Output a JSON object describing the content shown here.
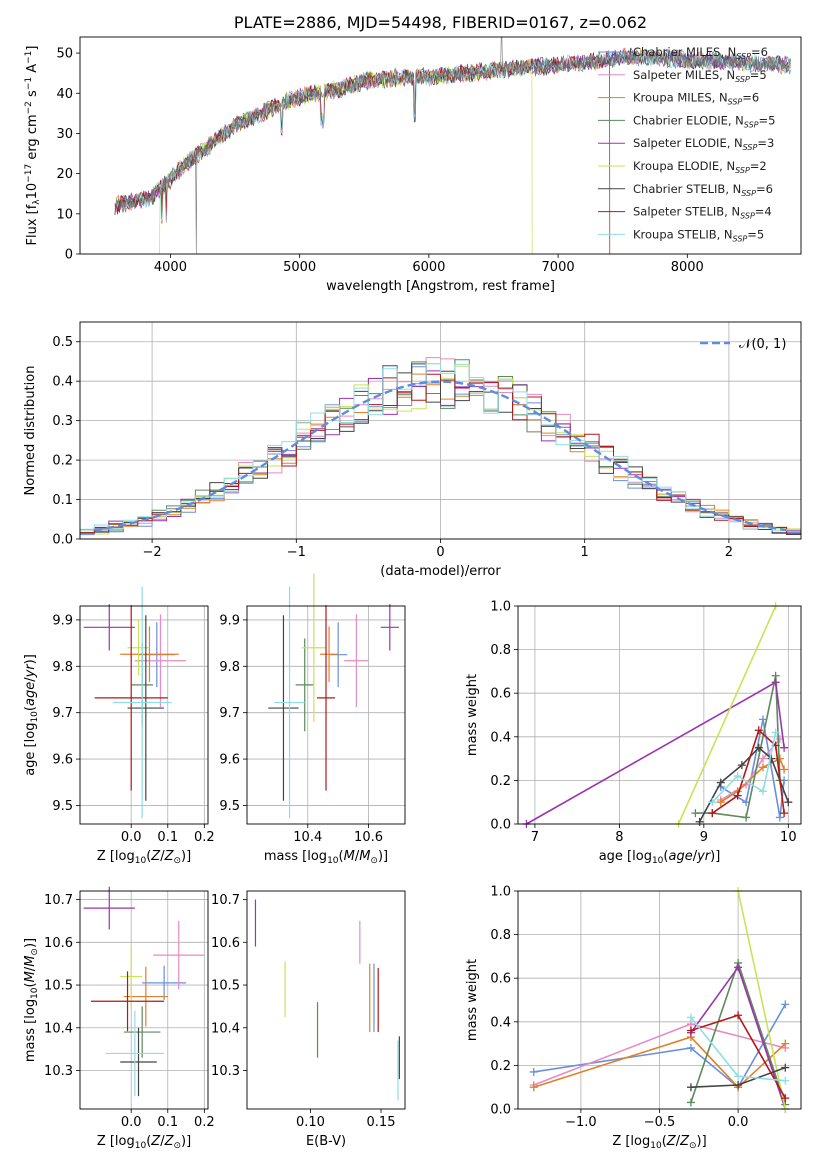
{
  "colors": {
    "Chabrier MILES": "#6a8fde",
    "Salpeter MILES": "#e88ac3",
    "Kroupa MILES": "#e0802a",
    "Chabrier ELODIE": "#5b8a5c",
    "Salpeter ELODIE": "#9a35ae",
    "Kroupa ELODIE": "#c9e356",
    "Chabrier STELIB": "#444444",
    "Salpeter STELIB": "#b31818",
    "Kroupa STELIB": "#8fdde6"
  },
  "chart_data": [
    {
      "id": "spectrum",
      "type": "line",
      "title": "PLATE=2886, MJD=54498, FIBERID=0167, z=0.062",
      "xlabel": "wavelength [Angstrom, rest frame]",
      "ylabel": "Flux [fλ10⁻¹⁷ erg cm⁻² s⁻¹ A⁻¹]",
      "xlim": [
        3300,
        8880
      ],
      "ylim": [
        0,
        54
      ],
      "xticks": [
        4000,
        5000,
        6000,
        7000,
        8000
      ],
      "yticks": [
        0,
        10,
        20,
        30,
        40,
        50
      ],
      "grid": false,
      "legend_position": "top-right",
      "continuum": {
        "x": [
          3570,
          3700,
          3850,
          3950,
          4100,
          4300,
          4500,
          4700,
          4900,
          5100,
          5300,
          5500,
          5800,
          6000,
          6300,
          6600,
          7000,
          7300,
          7500,
          7700,
          7900,
          8100,
          8300,
          8500,
          8800
        ],
        "y": [
          12,
          13,
          14,
          17,
          22,
          27,
          32,
          35,
          38,
          40,
          41,
          43,
          44,
          44,
          45,
          46,
          47,
          48,
          49,
          49,
          48.5,
          48,
          48,
          47.5,
          47
        ]
      },
      "legend": [
        "Chabrier MILES, N_SSP=6",
        "Salpeter MILES, N_SSP=5",
        "Kroupa MILES, N_SSP=6",
        "Chabrier ELODIE, N_SSP=5",
        "Salpeter ELODIE, N_SSP=3",
        "Kroupa ELODIE, N_SSP=2",
        "Chabrier STELIB, N_SSP=6",
        "Salpeter STELIB, N_SSP=4",
        "Kroupa STELIB, N_SSP=5"
      ]
    },
    {
      "id": "residuals",
      "type": "line",
      "xlabel": "(data-model)/error",
      "ylabel": "Normed distribution",
      "xlim": [
        -2.5,
        2.5
      ],
      "ylim": [
        0,
        0.55
      ],
      "xticks": [
        -2,
        -1,
        0,
        1,
        2
      ],
      "yticks": [
        0.0,
        0.1,
        0.2,
        0.3,
        0.4,
        0.5
      ],
      "grid": true,
      "legend_position": "top-right",
      "normal_label": "𝒩(0, 1)"
    },
    {
      "id": "age_vs_Z",
      "type": "scatter",
      "xlabel": "Z [log10(Z/Z☉)]",
      "ylabel": "age [log10(age/yr)]",
      "xlim": [
        -0.14,
        0.21
      ],
      "ylim": [
        9.46,
        9.93
      ],
      "xticks": [
        0.0,
        0.1,
        0.2
      ],
      "yticks": [
        9.5,
        9.6,
        9.7,
        9.8,
        9.9
      ],
      "grid": true,
      "points": [
        {
          "series": "Chabrier MILES",
          "x": 0.07,
          "y": 9.825,
          "xerr": 0.05,
          "yerr": 0.07
        },
        {
          "series": "Salpeter MILES",
          "x": 0.08,
          "y": 9.812,
          "xerr": 0.07,
          "yerr": 0.1
        },
        {
          "series": "Kroupa MILES",
          "x": 0.05,
          "y": 9.826,
          "xerr": 0.08,
          "yerr": 0.06
        },
        {
          "series": "Chabrier ELODIE",
          "x": 0.03,
          "y": 9.76,
          "xerr": 0.03,
          "yerr": 0.09
        },
        {
          "series": "Salpeter ELODIE",
          "x": -0.06,
          "y": 9.884,
          "xerr": 0.07,
          "yerr": 0.05
        },
        {
          "series": "Kroupa ELODIE",
          "x": 0.02,
          "y": 9.84,
          "xerr": 0.03,
          "yerr": 0.06
        },
        {
          "series": "Chabrier STELIB",
          "x": 0.04,
          "y": 9.71,
          "xerr": 0.05,
          "yerr": 0.2
        },
        {
          "series": "Salpeter STELIB",
          "x": 0.0,
          "y": 9.732,
          "xerr": 0.1,
          "yerr": 0.2
        },
        {
          "series": "Kroupa STELIB",
          "x": 0.03,
          "y": 9.722,
          "xerr": 0.08,
          "yerr": 0.25
        }
      ]
    },
    {
      "id": "age_vs_mass",
      "type": "scatter",
      "xlabel": "mass [log10(M/M☉)]",
      "ylabel": "",
      "xlim": [
        10.2,
        10.72
      ],
      "ylim": [
        9.46,
        9.93
      ],
      "xticks": [
        10.4,
        10.6
      ],
      "yticks": [
        9.5,
        9.6,
        9.7,
        9.8,
        9.9
      ],
      "grid": true,
      "points": [
        {
          "series": "Chabrier MILES",
          "x": 10.5,
          "y": 9.825,
          "xerr": 0.03,
          "yerr": 0.07
        },
        {
          "series": "Salpeter MILES",
          "x": 10.56,
          "y": 9.812,
          "xerr": 0.04,
          "yerr": 0.1
        },
        {
          "series": "Kroupa MILES",
          "x": 10.47,
          "y": 9.826,
          "xerr": 0.03,
          "yerr": 0.06
        },
        {
          "series": "Chabrier ELODIE",
          "x": 10.39,
          "y": 9.76,
          "xerr": 0.03,
          "yerr": 0.1
        },
        {
          "series": "Salpeter ELODIE",
          "x": 10.67,
          "y": 9.884,
          "xerr": 0.03,
          "yerr": 0.05
        },
        {
          "series": "Kroupa ELODIE",
          "x": 10.42,
          "y": 9.84,
          "xerr": 0.04,
          "yerr": 0.16
        },
        {
          "series": "Chabrier STELIB",
          "x": 10.32,
          "y": 9.71,
          "xerr": 0.05,
          "yerr": 0.2
        },
        {
          "series": "Salpeter STELIB",
          "x": 10.46,
          "y": 9.732,
          "xerr": 0.03,
          "yerr": 0.2
        },
        {
          "series": "Kroupa STELIB",
          "x": 10.34,
          "y": 9.722,
          "xerr": 0.05,
          "yerr": 0.25
        }
      ]
    },
    {
      "id": "weight_vs_age",
      "type": "line",
      "xlabel": "age [log10(age/yr)]",
      "ylabel": "mass weight",
      "xlim": [
        6.8,
        10.15
      ],
      "ylim": [
        0,
        1
      ],
      "xticks": [
        7,
        8,
        9,
        10
      ],
      "yticks": [
        0.0,
        0.2,
        0.4,
        0.6,
        0.8,
        1.0
      ],
      "grid": true,
      "series": [
        {
          "name": "Chabrier MILES",
          "x": [
            9.2,
            9.5,
            9.7,
            9.9,
            9.95
          ],
          "y": [
            0.17,
            0.1,
            0.48,
            0.03,
            0.2
          ]
        },
        {
          "name": "Salpeter MILES",
          "x": [
            9.2,
            9.5,
            9.7,
            9.9
          ],
          "y": [
            0.11,
            0.18,
            0.3,
            0.39
          ]
        },
        {
          "name": "Kroupa MILES",
          "x": [
            9.2,
            9.4,
            9.7,
            9.9,
            9.95
          ],
          "y": [
            0.1,
            0.15,
            0.26,
            0.3,
            0.25
          ]
        },
        {
          "name": "Chabrier ELODIE",
          "x": [
            8.9,
            9.1,
            9.5,
            9.85,
            9.9
          ],
          "y": [
            0.05,
            0.05,
            0.03,
            0.68,
            0.2
          ]
        },
        {
          "name": "Salpeter ELODIE",
          "x": [
            6.9,
            9.85,
            9.95
          ],
          "y": [
            0.0,
            0.65,
            0.35
          ]
        },
        {
          "name": "Kroupa ELODIE",
          "x": [
            8.7,
            9.85
          ],
          "y": [
            0.0,
            1.0
          ]
        },
        {
          "name": "Chabrier STELIB",
          "x": [
            8.95,
            9.2,
            9.45,
            9.65,
            9.8,
            10.0
          ],
          "y": [
            0.01,
            0.19,
            0.27,
            0.35,
            0.3,
            0.1
          ]
        },
        {
          "name": "Salpeter STELIB",
          "x": [
            9.1,
            9.4,
            9.65,
            9.85,
            9.95
          ],
          "y": [
            0.05,
            0.13,
            0.43,
            0.36,
            0.05
          ]
        },
        {
          "name": "Kroupa STELIB",
          "x": [
            9.1,
            9.4,
            9.7,
            9.85
          ],
          "y": [
            0.1,
            0.22,
            0.15,
            0.42
          ]
        }
      ]
    },
    {
      "id": "mass_vs_Z",
      "type": "scatter",
      "xlabel": "Z [log10(Z/Z☉)]",
      "ylabel": "mass [log10(M/M☉)]",
      "xlim": [
        -0.14,
        0.21
      ],
      "ylim": [
        10.21,
        10.72
      ],
      "xticks": [
        0.0,
        0.1,
        0.2
      ],
      "yticks": [
        10.3,
        10.4,
        10.5,
        10.6,
        10.7
      ],
      "grid": true,
      "points": [
        {
          "series": "Chabrier MILES",
          "x": 0.09,
          "y": 10.505,
          "xerr": 0.06,
          "yerr": 0.04
        },
        {
          "series": "Salpeter MILES",
          "x": 0.13,
          "y": 10.57,
          "xerr": 0.07,
          "yerr": 0.08
        },
        {
          "series": "Kroupa MILES",
          "x": 0.04,
          "y": 10.473,
          "xerr": 0.06,
          "yerr": 0.07
        },
        {
          "series": "Chabrier ELODIE",
          "x": 0.03,
          "y": 10.39,
          "xerr": 0.05,
          "yerr": 0.06
        },
        {
          "series": "Salpeter ELODIE",
          "x": -0.06,
          "y": 10.68,
          "xerr": 0.07,
          "yerr": 0.05
        },
        {
          "series": "Kroupa ELODIE",
          "x": 0.0,
          "y": 10.52,
          "xerr": 0.03,
          "yerr": 0.07
        },
        {
          "series": "Chabrier STELIB",
          "x": 0.02,
          "y": 10.32,
          "xerr": 0.05,
          "yerr": 0.08
        },
        {
          "series": "Salpeter STELIB",
          "x": -0.01,
          "y": 10.462,
          "xerr": 0.1,
          "yerr": 0.07
        },
        {
          "series": "Kroupa STELIB",
          "x": 0.01,
          "y": 10.34,
          "xerr": 0.08,
          "yerr": 0.1
        }
      ]
    },
    {
      "id": "mass_vs_EBV",
      "type": "scatter",
      "xlabel": "E(B-V)",
      "ylabel": "",
      "xlim": [
        0.055,
        0.167
      ],
      "ylim": [
        10.21,
        10.72
      ],
      "xticks": [
        0.1,
        0.15
      ],
      "yticks": [
        10.3,
        10.4,
        10.5,
        10.6,
        10.7
      ],
      "grid": false,
      "points": [
        {
          "series": "Chabrier MILES",
          "x": 0.145,
          "y": 10.47,
          "xerr": 0,
          "yerr": 0.08
        },
        {
          "series": "Salpeter MILES",
          "x": 0.135,
          "y": 10.6,
          "xerr": 0,
          "yerr": 0.05
        },
        {
          "series": "Kroupa MILES",
          "x": 0.142,
          "y": 10.47,
          "xerr": 0,
          "yerr": 0.08
        },
        {
          "series": "Chabrier ELODIE",
          "x": 0.105,
          "y": 10.395,
          "xerr": 0,
          "yerr": 0.065
        },
        {
          "series": "Salpeter ELODIE",
          "x": 0.061,
          "y": 10.645,
          "xerr": 0,
          "yerr": 0.055
        },
        {
          "series": "Kroupa ELODIE",
          "x": 0.082,
          "y": 10.49,
          "xerr": 0,
          "yerr": 0.065
        },
        {
          "series": "Chabrier STELIB",
          "x": 0.163,
          "y": 10.33,
          "xerr": 0,
          "yerr": 0.05
        },
        {
          "series": "Salpeter STELIB",
          "x": 0.148,
          "y": 10.465,
          "xerr": 0,
          "yerr": 0.075
        },
        {
          "series": "Kroupa STELIB",
          "x": 0.162,
          "y": 10.3,
          "xerr": 0,
          "yerr": 0.07
        }
      ]
    },
    {
      "id": "weight_vs_Z",
      "type": "line",
      "xlabel": "Z [log10(Z/Z☉)]",
      "ylabel": "mass weight",
      "xlim": [
        -1.4,
        0.4
      ],
      "ylim": [
        0,
        1
      ],
      "xticks": [
        -1.0,
        -0.5,
        0.0
      ],
      "yticks": [
        0.0,
        0.2,
        0.4,
        0.6,
        0.8,
        1.0
      ],
      "grid": true,
      "series": [
        {
          "name": "Chabrier MILES",
          "x": [
            -1.3,
            -0.3,
            0.0,
            0.3
          ],
          "y": [
            0.17,
            0.28,
            0.1,
            0.48
          ]
        },
        {
          "name": "Salpeter MILES",
          "x": [
            -1.3,
            -0.3,
            0.3
          ],
          "y": [
            0.11,
            0.39,
            0.28
          ]
        },
        {
          "name": "Kroupa MILES",
          "x": [
            -1.3,
            -0.3,
            0.0,
            0.3
          ],
          "y": [
            0.1,
            0.33,
            0.1,
            0.3
          ]
        },
        {
          "name": "Chabrier ELODIE",
          "x": [
            -0.3,
            0.0,
            0.3
          ],
          "y": [
            0.03,
            0.67,
            0.02
          ]
        },
        {
          "name": "Salpeter ELODIE",
          "x": [
            -0.3,
            0.0,
            0.3
          ],
          "y": [
            0.35,
            0.65,
            0.0
          ]
        },
        {
          "name": "Kroupa ELODIE",
          "x": [
            0.0,
            0.3
          ],
          "y": [
            1.0,
            0.0
          ]
        },
        {
          "name": "Chabrier STELIB",
          "x": [
            -0.3,
            0.0,
            0.3
          ],
          "y": [
            0.1,
            0.11,
            0.19
          ]
        },
        {
          "name": "Salpeter STELIB",
          "x": [
            -0.3,
            0.0,
            0.3
          ],
          "y": [
            0.36,
            0.43,
            0.05
          ]
        },
        {
          "name": "Kroupa STELIB",
          "x": [
            -0.3,
            0.0,
            0.3
          ],
          "y": [
            0.42,
            0.15,
            0.13
          ]
        }
      ]
    }
  ]
}
